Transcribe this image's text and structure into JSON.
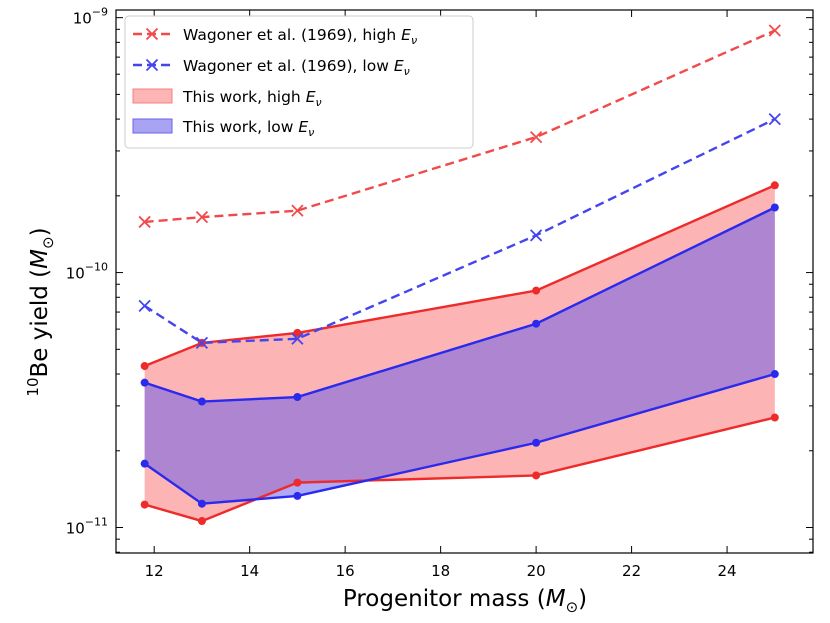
{
  "chart_data": {
    "type": "line",
    "xlabel": "Progenitor mass",
    "xlabel_unit": "M",
    "xlabel_unit_sub": "⊙",
    "ylabel_sup": "10",
    "ylabel": "Be yield",
    "ylabel_unit": "M",
    "ylabel_unit_sub": "⊙",
    "xlim": [
      11.2,
      25.8
    ],
    "ylim_log10": [
      -11.1,
      -8.97
    ],
    "yscale": "log",
    "x_ticks": [
      12,
      14,
      16,
      18,
      20,
      22,
      24
    ],
    "y_major_ticks": [
      {
        "base": "10",
        "exp": "−11",
        "value": 1e-11
      },
      {
        "base": "10",
        "exp": "−10",
        "value": 1e-10
      },
      {
        "base": "10",
        "exp": "−9",
        "value": 1e-09
      }
    ],
    "x": [
      11.8,
      13,
      15,
      20,
      25
    ],
    "series": [
      {
        "name": "Wagoner et al. (1969), high E_ν",
        "kind": "line",
        "color": "#f24a4a",
        "values": [
          1.58e-10,
          1.65e-10,
          1.75e-10,
          3.4e-10,
          8.9e-10
        ]
      },
      {
        "name": "Wagoner et al. (1969), low E_ν",
        "kind": "line",
        "color": "#4545ee",
        "values": [
          7.4e-11,
          5.3e-11,
          5.5e-11,
          1.4e-10,
          4e-10
        ]
      },
      {
        "name": "This work, high E_ν",
        "kind": "band",
        "color": "#ee2b2b",
        "fill": "#fdb4b4",
        "upper": [
          4.3e-11,
          5.3e-11,
          5.8e-11,
          8.5e-11,
          2.2e-10
        ],
        "lower": [
          1.23e-11,
          1.06e-11,
          1.5e-11,
          1.6e-11,
          2.7e-11
        ]
      },
      {
        "name": "This work, low E_ν",
        "kind": "band",
        "color": "#2a2aee",
        "fill": "rgba(95,85,235,0.5)",
        "upper": [
          3.7e-11,
          3.12e-11,
          3.25e-11,
          6.3e-11,
          1.8e-10
        ],
        "lower": [
          1.78e-11,
          1.24e-11,
          1.33e-11,
          2.15e-11,
          4e-11
        ]
      }
    ],
    "legend": {
      "placement": "top-left",
      "entries": [
        {
          "label": "Wagoner et al. (1969), high ",
          "sym": "E",
          "sub": "ν",
          "swatch": "line-x",
          "color": "#f24a4a"
        },
        {
          "label": "Wagoner et al. (1969), low ",
          "sym": "E",
          "sub": "ν",
          "swatch": "line-x",
          "color": "#4545ee"
        },
        {
          "label": "This work, high ",
          "sym": "E",
          "sub": "ν",
          "swatch": "patch",
          "color": "#fdb4b4",
          "edge": "#f08080"
        },
        {
          "label": "This work, low ",
          "sym": "E",
          "sub": "ν",
          "swatch": "patch",
          "color": "#a9a3f3",
          "edge": "#6a60e8"
        }
      ]
    }
  }
}
